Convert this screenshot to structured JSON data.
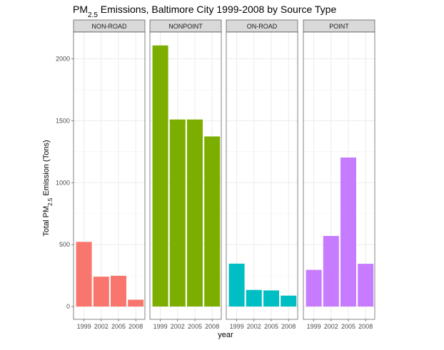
{
  "chart_data": {
    "type": "bar",
    "title": {
      "main": "PM",
      "sub": "2.5",
      "rest": " Emissions, Baltimore City 1999-2008 by Source Type"
    },
    "xlabel": "year",
    "ylabel": {
      "main": "Total PM",
      "sub": "2.5",
      "rest": " Emission (Tons)"
    },
    "categories": [
      "1999",
      "2002",
      "2005",
      "2008"
    ],
    "ylim": [
      0,
      2200
    ],
    "yticks": [
      0,
      500,
      1000,
      1500,
      2000
    ],
    "grid": true,
    "facets": [
      {
        "name": "NON-ROAD",
        "color": "#F8766D",
        "values": [
          522,
          241,
          248,
          55
        ]
      },
      {
        "name": "NONPOINT",
        "color": "#7CAE00",
        "values": [
          2108,
          1510,
          1510,
          1373
        ]
      },
      {
        "name": "ON-ROAD",
        "color": "#00BFC4",
        "values": [
          346,
          134,
          130,
          88
        ]
      },
      {
        "name": "POINT",
        "color": "#C77CFF",
        "values": [
          296,
          570,
          1203,
          345
        ]
      }
    ]
  }
}
